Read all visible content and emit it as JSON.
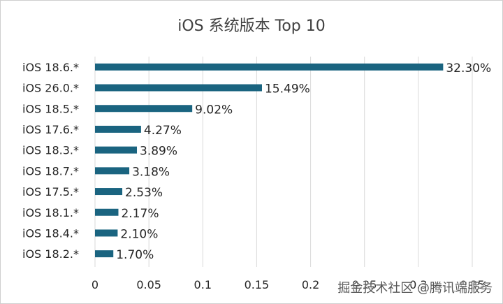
{
  "chart_data": {
    "type": "bar",
    "orientation": "horizontal",
    "title": "iOS 系统版本 Top 10",
    "categories": [
      "iOS 18.6.*",
      "iOS 26.0.*",
      "iOS 18.5.*",
      "iOS 17.6.*",
      "iOS 18.3.*",
      "iOS 18.7.*",
      "iOS 17.5.*",
      "iOS 18.1.*",
      "iOS 18.4.*",
      "iOS 18.2.*"
    ],
    "values": [
      0.323,
      0.1549,
      0.0902,
      0.0427,
      0.0389,
      0.0318,
      0.0253,
      0.0217,
      0.021,
      0.017
    ],
    "data_labels": [
      "32.30%",
      "15.49%",
      "9.02%",
      "4.27%",
      "3.89%",
      "3.18%",
      "2.53%",
      "2.17%",
      "2.10%",
      "1.70%"
    ],
    "x_ticks": [
      0,
      0.05,
      0.1,
      0.15,
      0.2,
      0.25,
      0.3,
      0.35
    ],
    "x_tick_labels": [
      "0",
      "0.05",
      "0.1",
      "0.15",
      "0.2",
      "0.25",
      "0.3",
      "0.35"
    ],
    "xlim": [
      0,
      0.35
    ],
    "xlabel": "",
    "ylabel": "",
    "grid": "vertical",
    "legend": "none",
    "bar_color": "#1a6480",
    "grid_color": "#d9d9d9"
  },
  "watermark": "掘金技术社区 @腾讯端服务"
}
